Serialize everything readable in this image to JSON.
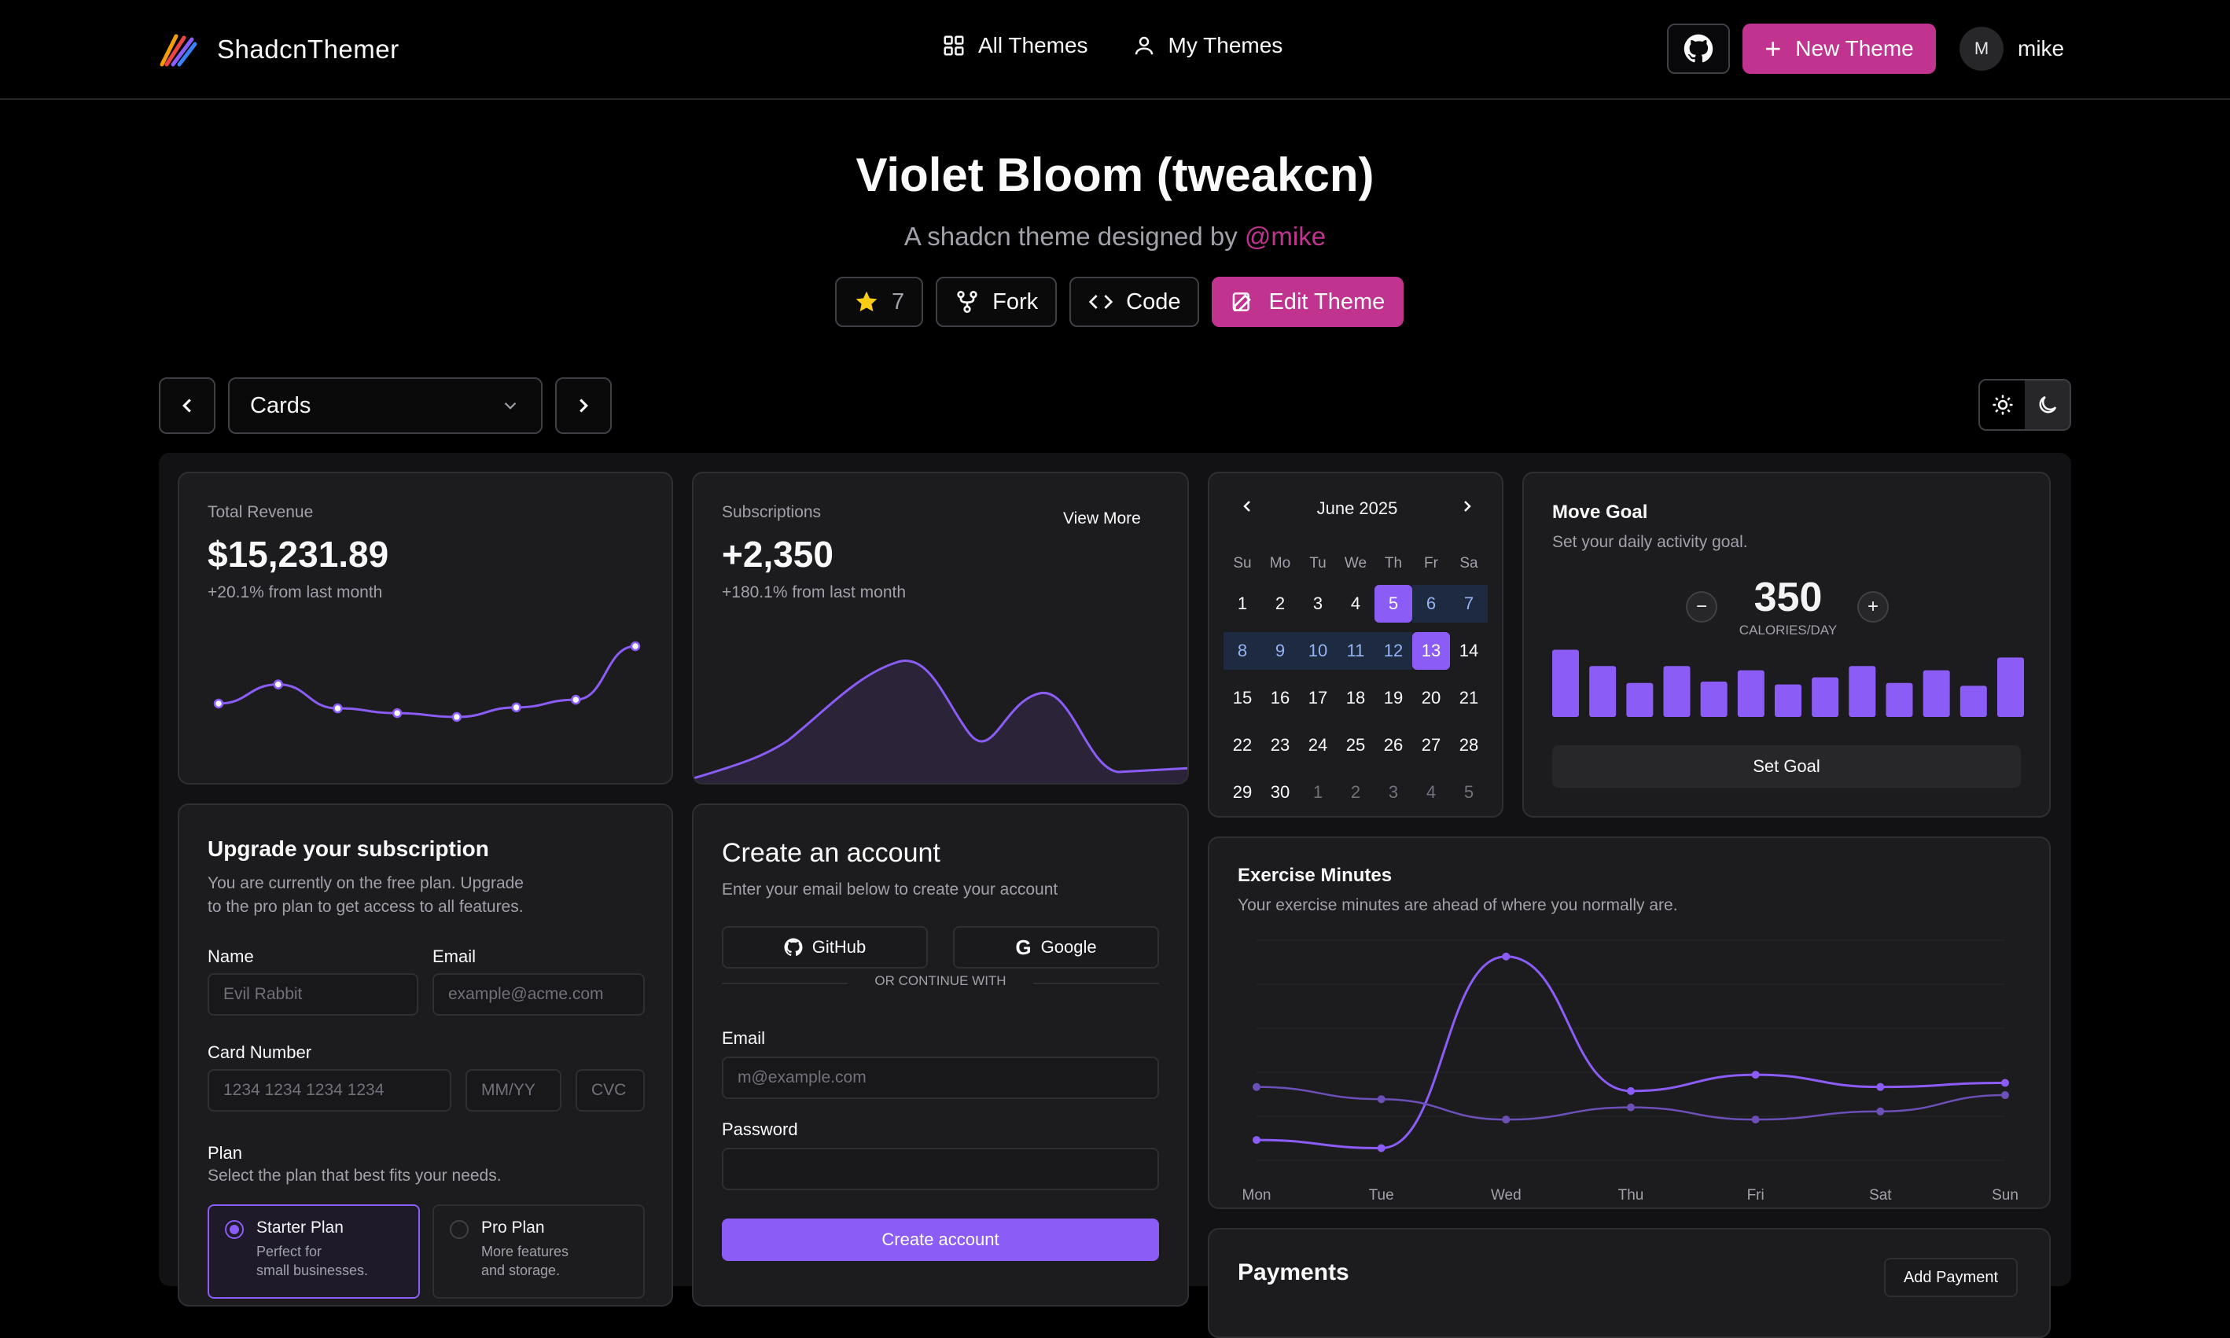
{
  "header": {
    "brand": "ShadcnThemer",
    "nav": [
      {
        "label": "All Themes",
        "icon": "grid-icon"
      },
      {
        "label": "My Themes",
        "icon": "user-icon"
      }
    ],
    "new_theme_label": "New Theme",
    "user": {
      "initial": "M",
      "name": "mike"
    }
  },
  "hero": {
    "title": "Violet Bloom (tweakcn)",
    "subtitle_prefix": "A shadcn theme designed by",
    "author": "@mike",
    "star_count": "7",
    "fork_label": "Fork",
    "code_label": "Code",
    "edit_label": "Edit Theme"
  },
  "toolbar": {
    "selected_view": "Cards"
  },
  "revenue": {
    "label": "Total Revenue",
    "value": "$15,231.89",
    "delta": "+20.1% from last month",
    "series": [
      4,
      6,
      3.5,
      3,
      2.6,
      3.6,
      4.4,
      10
    ]
  },
  "subscriptions": {
    "label": "Subscriptions",
    "value": "+2,350",
    "delta": "+180.1% from last month",
    "view_more": "View More"
  },
  "calendar": {
    "month": "June 2025",
    "weekdays": [
      "Su",
      "Mo",
      "Tu",
      "We",
      "Th",
      "Fr",
      "Sa"
    ],
    "weeks": [
      [
        "1",
        "2",
        "3",
        "4",
        "5",
        "6",
        "7"
      ],
      [
        "8",
        "9",
        "10",
        "11",
        "12",
        "13",
        "14"
      ],
      [
        "15",
        "16",
        "17",
        "18",
        "19",
        "20",
        "21"
      ],
      [
        "22",
        "23",
        "24",
        "25",
        "26",
        "27",
        "28"
      ],
      [
        "29",
        "30",
        "1",
        "2",
        "3",
        "4",
        "5"
      ]
    ]
  },
  "move_goal": {
    "title": "Move Goal",
    "description": "Set your daily activity goal.",
    "value": "350",
    "unit": "CALORIES/DAY",
    "bars": [
      0.95,
      0.72,
      0.48,
      0.72,
      0.5,
      0.66,
      0.46,
      0.56,
      0.72,
      0.48,
      0.66,
      0.44,
      0.84
    ],
    "button": "Set Goal"
  },
  "upgrade": {
    "title": "Upgrade your subscription",
    "description_line1": "You are currently on the free plan. Upgrade",
    "description_line2": "to the pro plan to get access to all features.",
    "name_label": "Name",
    "name_placeholder": "Evil Rabbit",
    "email_label": "Email",
    "email_placeholder": "example@acme.com",
    "card_label": "Card Number",
    "card_placeholder": "1234 1234 1234 1234",
    "exp_placeholder": "MM/YY",
    "cvc_placeholder": "CVC",
    "plan_label": "Plan",
    "plan_desc": "Select the plan that best fits your needs.",
    "plans": [
      {
        "name": "Starter Plan",
        "desc1": "Perfect for",
        "desc2": "small businesses."
      },
      {
        "name": "Pro Plan",
        "desc1": "More features",
        "desc2": "and storage."
      }
    ]
  },
  "account": {
    "title": "Create an account",
    "description": "Enter your email below to create your account",
    "github": "GitHub",
    "google": "Google",
    "divider": "OR CONTINUE WITH",
    "email_label": "Email",
    "email_placeholder": "m@example.com",
    "password_label": "Password",
    "submit": "Create account"
  },
  "exercise": {
    "title": "Exercise Minutes",
    "description": "Your exercise minutes are ahead of where you normally are."
  },
  "chart_data": {
    "type": "line",
    "title": "Exercise Minutes",
    "categories": [
      "Mon",
      "Tue",
      "Wed",
      "Thu",
      "Fri",
      "Sat",
      "Sun"
    ],
    "series": [
      {
        "values": [
          175,
          165,
          400,
          235,
          255,
          240,
          245
        ]
      },
      {
        "values": [
          240,
          225,
          200,
          215,
          200,
          210,
          230
        ]
      }
    ],
    "ylim": [
      150,
      420
    ],
    "grid": true,
    "colors": [
      "#8b5cf6",
      "#6d4fb8"
    ]
  },
  "payments": {
    "title": "Payments",
    "add_label": "Add Payment"
  },
  "colors": {
    "primary": "#c0338f",
    "chart": "#8b5cf6"
  }
}
